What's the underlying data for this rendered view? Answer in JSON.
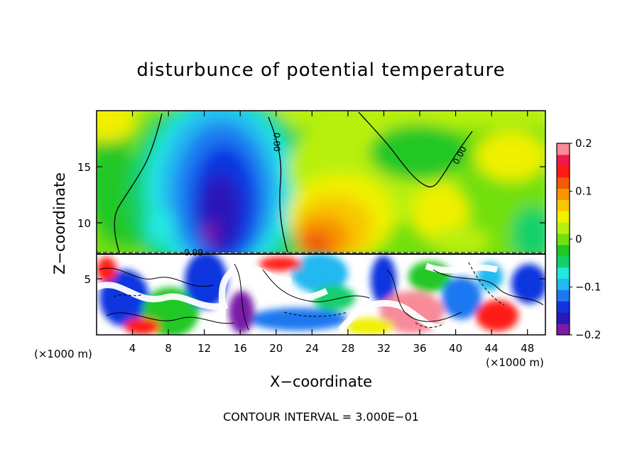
{
  "chart_data": {
    "type": "heatmap",
    "title": "disturbunce of potential temperature",
    "xlabel": "X−coordinate",
    "ylabel": "Z−coordinate",
    "x_unit_left": "(×1000 m)",
    "x_unit_right": "(×1000 m)",
    "footer": "CONTOUR INTERVAL = 3.000E−01",
    "xlim": [
      0,
      50
    ],
    "ylim": [
      0,
      20
    ],
    "x_ticks": [
      4,
      8,
      12,
      16,
      20,
      24,
      28,
      32,
      36,
      40,
      44,
      48
    ],
    "y_ticks": [
      5,
      10,
      15
    ],
    "colorbar": {
      "range": [
        -0.2,
        0.2
      ],
      "tick_values": [
        0.2,
        0.1,
        0,
        -0.1,
        -0.2
      ],
      "tick_labels": [
        "0.2",
        "0.1",
        "0",
        "−0.1",
        "−0.2"
      ],
      "colors": [
        "#7a1aa8",
        "#2a18b8",
        "#1035e0",
        "#1c78f0",
        "#22b8f0",
        "#20e8e0",
        "#14d06a",
        "#20c828",
        "#72e010",
        "#b8f010",
        "#f0f000",
        "#f8c800",
        "#f89400",
        "#f05a08",
        "#ff1a12",
        "#f01a48",
        "#f88a9a"
      ]
    },
    "contour_labels": [
      "0.00",
      "0.00",
      "0.00"
    ],
    "features": {
      "cold_anomaly": {
        "x_center": 13.5,
        "z_center": 12,
        "min_value": -0.2
      },
      "warm_anomaly": {
        "x_center": 27,
        "z_center": 8.5,
        "max_value": 0.12
      },
      "turbulent_layer_top_z": 7.3
    }
  }
}
